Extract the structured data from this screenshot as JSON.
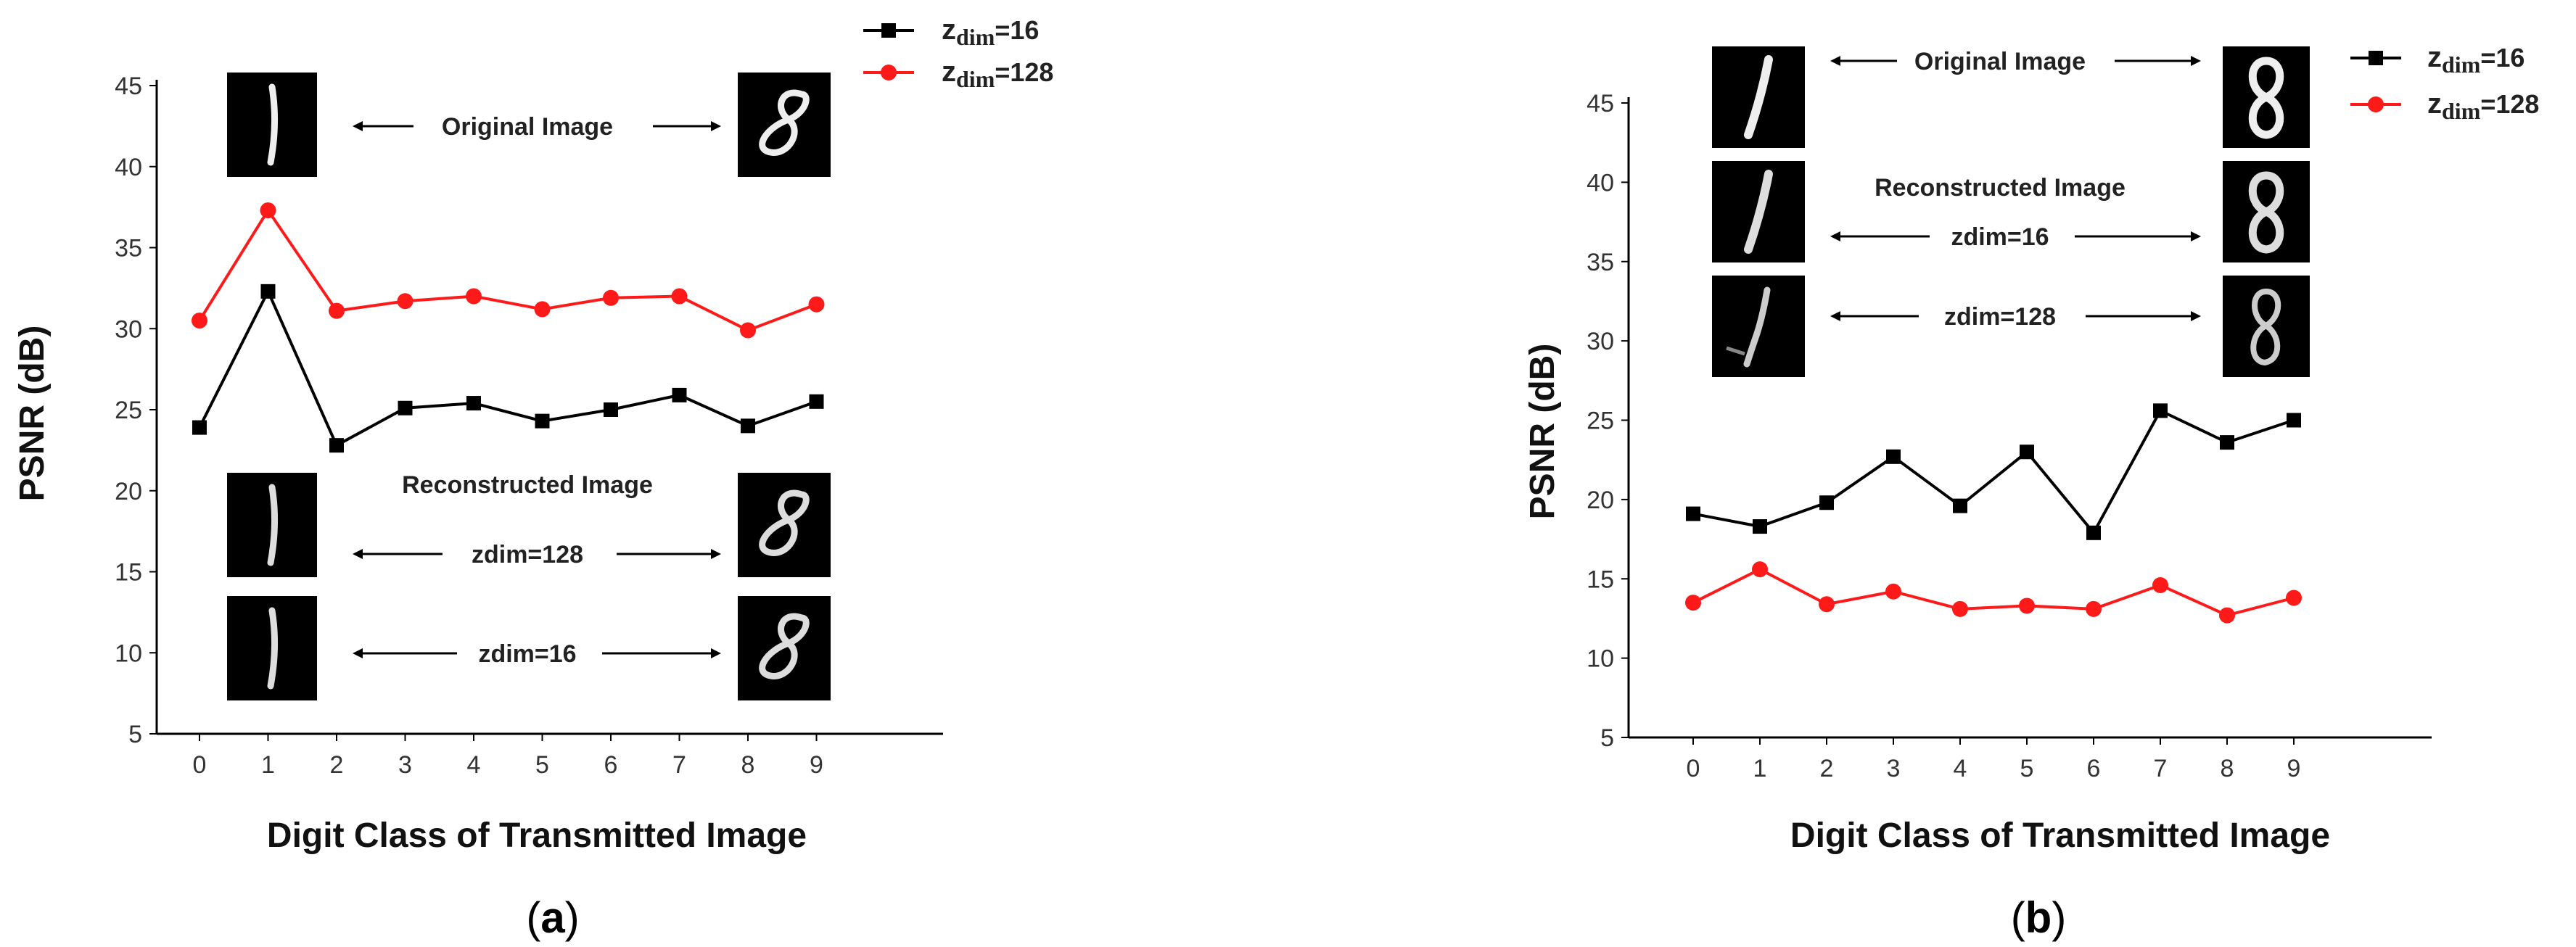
{
  "colors": {
    "series_16": "#000000",
    "series_128": "#ff1a1a",
    "axis": "#000000",
    "digit_bg": "#000000",
    "digit_fg": "#f2f2f2"
  },
  "digits": {
    "left": "1",
    "right": "8"
  },
  "legend": [
    {
      "z": "z",
      "sub": "dim",
      "suffix": "=16",
      "color": "#000000",
      "marker": "square"
    },
    {
      "z": "z",
      "sub": "dim",
      "suffix": "=128",
      "color": "#ff1a1a",
      "marker": "circle"
    }
  ],
  "panels": [
    {
      "label_open": "(",
      "label_letter": "a",
      "label_close": ")",
      "annotations": {
        "original": "Original Image",
        "reconstructed": "Reconstructed Image",
        "row1": "zdim=128",
        "row2": "zdim=16"
      }
    },
    {
      "label_open": "(",
      "label_letter": "b",
      "label_close": ")",
      "annotations": {
        "original": "Original Image",
        "reconstructed": "Reconstructed Image",
        "row1": "zdim=16",
        "row2": "zdim=128"
      }
    }
  ],
  "chart_data": [
    {
      "type": "line",
      "xlabel": "Digit Class of Transmitted Image",
      "ylabel": "PSNR (dB)",
      "ylim": [
        5,
        45
      ],
      "yticks": [
        5,
        10,
        15,
        20,
        25,
        30,
        35,
        40,
        45
      ],
      "x": [
        0,
        1,
        2,
        3,
        4,
        5,
        6,
        7,
        8,
        9
      ],
      "grid": false,
      "legend_position": "top-right",
      "series": [
        {
          "name": "zdim=16",
          "values": [
            23.9,
            32.3,
            22.8,
            25.1,
            25.4,
            24.3,
            25.0,
            25.9,
            24.0,
            25.5
          ]
        },
        {
          "name": "zdim=128",
          "values": [
            30.5,
            37.3,
            31.1,
            31.7,
            32.0,
            31.2,
            31.9,
            32.0,
            29.9,
            31.5
          ]
        }
      ]
    },
    {
      "type": "line",
      "xlabel": "Digit Class of Transmitted Image",
      "ylabel": "PSNR (dB)",
      "ylim": [
        5,
        45
      ],
      "yticks": [
        5,
        10,
        15,
        20,
        25,
        30,
        35,
        40,
        45
      ],
      "x": [
        0,
        1,
        2,
        3,
        4,
        5,
        6,
        7,
        8,
        9
      ],
      "grid": false,
      "legend_position": "top-right",
      "series": [
        {
          "name": "zdim=16",
          "values": [
            19.1,
            18.3,
            19.8,
            22.7,
            19.6,
            23.0,
            17.9,
            25.6,
            23.6,
            25.0
          ]
        },
        {
          "name": "zdim=128",
          "values": [
            13.5,
            15.6,
            13.4,
            14.2,
            13.1,
            13.3,
            13.1,
            14.6,
            12.7,
            13.8
          ]
        }
      ]
    }
  ]
}
